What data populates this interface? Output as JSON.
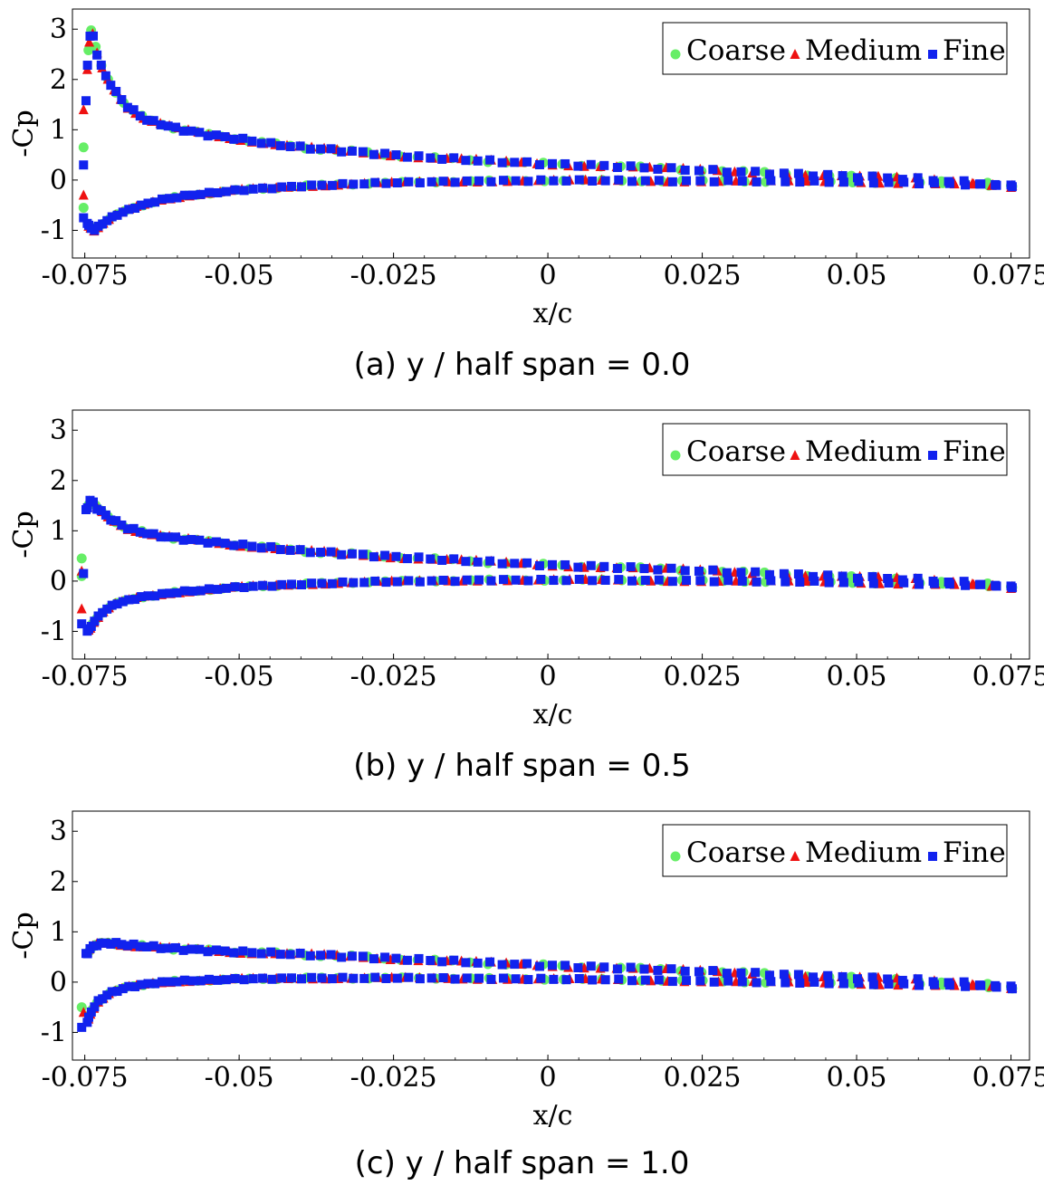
{
  "chart_data": [
    {
      "type": "scatter",
      "caption": "(a) y / half span = 0.0",
      "xlabel": "x/c",
      "ylabel": "-Cp",
      "xlim": [
        -0.077,
        0.078
      ],
      "ylim": [
        -1.55,
        3.4
      ],
      "x_ticks": [
        -0.075,
        -0.05,
        -0.025,
        0,
        0.025,
        0.05,
        0.075
      ],
      "x_tick_labels": [
        "-0.075",
        "-0.05",
        "-0.025",
        "0",
        "0.025",
        "0.05",
        "0.075"
      ],
      "y_ticks": [
        -1,
        0,
        1,
        2,
        3
      ],
      "y_tick_labels": [
        "-1",
        "0",
        "1",
        "2",
        "3"
      ],
      "legend": [
        "Coarse",
        "Medium",
        "Fine"
      ],
      "legend_position": "top-right",
      "upper_profile": [
        [
          -0.0752,
          0.3
        ],
        [
          -0.0745,
          2.5
        ],
        [
          -0.074,
          3.0
        ],
        [
          -0.0735,
          2.8
        ],
        [
          -0.073,
          2.5
        ],
        [
          -0.072,
          2.15
        ],
        [
          -0.07,
          1.75
        ],
        [
          -0.068,
          1.45
        ],
        [
          -0.065,
          1.2
        ],
        [
          -0.06,
          1.02
        ],
        [
          -0.055,
          0.9
        ],
        [
          -0.05,
          0.82
        ],
        [
          -0.045,
          0.72
        ],
        [
          -0.04,
          0.65
        ],
        [
          -0.03,
          0.55
        ],
        [
          -0.02,
          0.45
        ],
        [
          -0.01,
          0.38
        ],
        [
          0.0,
          0.32
        ],
        [
          0.01,
          0.28
        ],
        [
          0.02,
          0.22
        ],
        [
          0.03,
          0.17
        ],
        [
          0.04,
          0.12
        ],
        [
          0.05,
          0.07
        ],
        [
          0.06,
          0.02
        ],
        [
          0.07,
          -0.06
        ],
        [
          0.075,
          -0.12
        ]
      ],
      "lower_profile": [
        [
          -0.0752,
          -0.55
        ],
        [
          -0.0745,
          -0.9
        ],
        [
          -0.0735,
          -1.0
        ],
        [
          -0.072,
          -0.85
        ],
        [
          -0.07,
          -0.7
        ],
        [
          -0.067,
          -0.55
        ],
        [
          -0.063,
          -0.4
        ],
        [
          -0.058,
          -0.3
        ],
        [
          -0.05,
          -0.2
        ],
        [
          -0.04,
          -0.12
        ],
        [
          -0.03,
          -0.07
        ],
        [
          -0.02,
          -0.04
        ],
        [
          -0.01,
          -0.02
        ],
        [
          0.0,
          -0.01
        ],
        [
          0.01,
          -0.01
        ],
        [
          0.02,
          -0.02
        ],
        [
          0.03,
          -0.02
        ],
        [
          0.04,
          -0.03
        ],
        [
          0.05,
          -0.04
        ],
        [
          0.06,
          -0.06
        ],
        [
          0.07,
          -0.09
        ],
        [
          0.075,
          -0.12
        ]
      ],
      "le_points": {
        "Coarse": [
          [
            -0.0752,
            0.65
          ],
          [
            -0.0752,
            -0.55
          ]
        ],
        "Medium": [
          [
            -0.0752,
            1.4
          ],
          [
            -0.0752,
            -0.3
          ]
        ],
        "Fine": [
          [
            -0.0752,
            0.3
          ],
          [
            -0.0752,
            -0.75
          ]
        ]
      }
    },
    {
      "type": "scatter",
      "caption": "(b) y / half span = 0.5",
      "xlabel": "x/c",
      "ylabel": "-Cp",
      "xlim": [
        -0.077,
        0.078
      ],
      "ylim": [
        -1.55,
        3.4
      ],
      "x_ticks": [
        -0.075,
        -0.05,
        -0.025,
        0,
        0.025,
        0.05,
        0.075
      ],
      "x_tick_labels": [
        "-0.075",
        "-0.05",
        "-0.025",
        "0",
        "0.025",
        "0.05",
        "0.075"
      ],
      "y_ticks": [
        -1,
        0,
        1,
        2,
        3
      ],
      "y_tick_labels": [
        "-1",
        "0",
        "1",
        "2",
        "3"
      ],
      "legend": [
        "Coarse",
        "Medium",
        "Fine"
      ],
      "legend_position": "top-right",
      "upper_profile": [
        [
          -0.0755,
          0.2
        ],
        [
          -0.0752,
          1.1
        ],
        [
          -0.0748,
          1.4
        ],
        [
          -0.0742,
          1.6
        ],
        [
          -0.0735,
          1.55
        ],
        [
          -0.073,
          1.45
        ],
        [
          -0.071,
          1.25
        ],
        [
          -0.068,
          1.05
        ],
        [
          -0.064,
          0.92
        ],
        [
          -0.06,
          0.85
        ],
        [
          -0.055,
          0.78
        ],
        [
          -0.05,
          0.72
        ],
        [
          -0.045,
          0.66
        ],
        [
          -0.04,
          0.6
        ],
        [
          -0.03,
          0.52
        ],
        [
          -0.02,
          0.45
        ],
        [
          -0.01,
          0.38
        ],
        [
          0.0,
          0.32
        ],
        [
          0.01,
          0.28
        ],
        [
          0.02,
          0.23
        ],
        [
          0.03,
          0.18
        ],
        [
          0.04,
          0.13
        ],
        [
          0.05,
          0.08
        ],
        [
          0.06,
          0.03
        ],
        [
          0.07,
          -0.05
        ],
        [
          0.075,
          -0.12
        ]
      ],
      "lower_profile": [
        [
          -0.0755,
          -0.8
        ],
        [
          -0.0748,
          -1.0
        ],
        [
          -0.0742,
          -0.95
        ],
        [
          -0.0735,
          -0.8
        ],
        [
          -0.072,
          -0.6
        ],
        [
          -0.07,
          -0.45
        ],
        [
          -0.066,
          -0.32
        ],
        [
          -0.06,
          -0.22
        ],
        [
          -0.05,
          -0.12
        ],
        [
          -0.04,
          -0.06
        ],
        [
          -0.03,
          -0.02
        ],
        [
          -0.02,
          0.0
        ],
        [
          -0.01,
          0.02
        ],
        [
          0.0,
          0.02
        ],
        [
          0.01,
          0.02
        ],
        [
          0.02,
          0.01
        ],
        [
          0.03,
          0.0
        ],
        [
          0.04,
          -0.01
        ],
        [
          0.05,
          -0.03
        ],
        [
          0.06,
          -0.05
        ],
        [
          0.07,
          -0.08
        ],
        [
          0.075,
          -0.12
        ]
      ],
      "le_points": {
        "Coarse": [
          [
            -0.0755,
            0.45
          ],
          [
            -0.0755,
            0.1
          ]
        ],
        "Medium": [
          [
            -0.0755,
            -0.55
          ],
          [
            -0.0755,
            0.2
          ]
        ],
        "Fine": [
          [
            -0.0752,
            0.15
          ],
          [
            -0.0755,
            -0.85
          ]
        ]
      }
    },
    {
      "type": "scatter",
      "caption": "(c) y / half span = 1.0",
      "xlabel": "x/c",
      "ylabel": "-Cp",
      "xlim": [
        -0.077,
        0.078
      ],
      "ylim": [
        -1.55,
        3.4
      ],
      "x_ticks": [
        -0.075,
        -0.05,
        -0.025,
        0,
        0.025,
        0.05,
        0.075
      ],
      "x_tick_labels": [
        "-0.075",
        "-0.05",
        "-0.025",
        "0",
        "0.025",
        "0.05",
        "0.075"
      ],
      "y_ticks": [
        -1,
        0,
        1,
        2,
        3
      ],
      "y_tick_labels": [
        "-1",
        "0",
        "1",
        "2",
        "3"
      ],
      "legend": [
        "Coarse",
        "Medium",
        "Fine"
      ],
      "legend_position": "top-right",
      "upper_profile": [
        [
          -0.0755,
          -0.15
        ],
        [
          -0.0752,
          0.3
        ],
        [
          -0.0748,
          0.55
        ],
        [
          -0.074,
          0.68
        ],
        [
          -0.073,
          0.75
        ],
        [
          -0.071,
          0.78
        ],
        [
          -0.068,
          0.74
        ],
        [
          -0.064,
          0.7
        ],
        [
          -0.06,
          0.66
        ],
        [
          -0.05,
          0.6
        ],
        [
          -0.04,
          0.55
        ],
        [
          -0.03,
          0.5
        ],
        [
          -0.02,
          0.44
        ],
        [
          -0.01,
          0.38
        ],
        [
          0.0,
          0.33
        ],
        [
          0.01,
          0.29
        ],
        [
          0.02,
          0.24
        ],
        [
          0.03,
          0.19
        ],
        [
          0.04,
          0.14
        ],
        [
          0.05,
          0.09
        ],
        [
          0.06,
          0.04
        ],
        [
          0.07,
          -0.04
        ],
        [
          0.075,
          -0.1
        ]
      ],
      "lower_profile": [
        [
          -0.0755,
          -0.95
        ],
        [
          -0.0748,
          -0.85
        ],
        [
          -0.074,
          -0.6
        ],
        [
          -0.073,
          -0.4
        ],
        [
          -0.071,
          -0.22
        ],
        [
          -0.068,
          -0.1
        ],
        [
          -0.064,
          -0.02
        ],
        [
          -0.06,
          0.02
        ],
        [
          -0.05,
          0.06
        ],
        [
          -0.04,
          0.08
        ],
        [
          -0.03,
          0.08
        ],
        [
          -0.02,
          0.08
        ],
        [
          -0.01,
          0.07
        ],
        [
          0.0,
          0.06
        ],
        [
          0.01,
          0.05
        ],
        [
          0.02,
          0.03
        ],
        [
          0.03,
          0.01
        ],
        [
          0.04,
          -0.01
        ],
        [
          0.05,
          -0.03
        ],
        [
          0.06,
          -0.05
        ],
        [
          0.07,
          -0.08
        ],
        [
          0.075,
          -0.12
        ]
      ],
      "le_points": {
        "Coarse": [
          [
            -0.0755,
            -0.5
          ]
        ],
        "Medium": [
          [
            -0.0752,
            -0.6
          ]
        ],
        "Fine": [
          [
            -0.0755,
            -0.9
          ]
        ]
      }
    }
  ],
  "colors": {
    "Coarse": "#66ee66",
    "Medium": "#ee1111",
    "Fine": "#1122ee"
  }
}
